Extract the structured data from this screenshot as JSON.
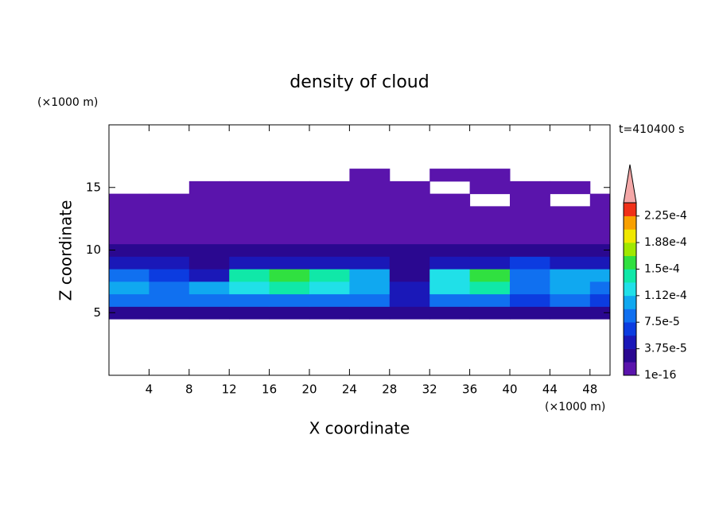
{
  "chart_data": {
    "type": "contour",
    "title": "density of cloud",
    "time_label": "t=410400 s",
    "x_label": "X coordinate",
    "y_label": "Z coordinate",
    "x_unit": "(×1000 m)",
    "y_unit": "(×1000 m)",
    "x": [
      2,
      6,
      10,
      14,
      18,
      22,
      26,
      30,
      34,
      38,
      42,
      46,
      50
    ],
    "z": [
      5,
      6,
      7,
      8,
      9,
      10,
      11,
      12,
      13,
      14,
      15,
      16
    ],
    "values": [
      [
        3e-05,
        3e-05,
        3e-05,
        3.5e-05,
        3.5e-05,
        3.5e-05,
        3e-05,
        2e-05,
        3e-05,
        3e-05,
        2.5e-05,
        3e-05,
        3e-05
      ],
      [
        8e-05,
        8e-05,
        9e-05,
        9e-05,
        9e-05,
        9e-05,
        8e-05,
        4e-05,
        9e-05,
        9e-05,
        6e-05,
        8e-05,
        6e-05
      ],
      [
        0.00011,
        9e-05,
        0.00011,
        0.00013,
        0.000135,
        0.00013,
        0.00011,
        5e-05,
        0.00013,
        0.000135,
        9e-05,
        0.0001,
        9e-05
      ],
      [
        9e-05,
        7e-05,
        4e-05,
        0.00015,
        0.00016,
        0.00014,
        0.0001,
        3e-05,
        0.00012,
        0.00016,
        8e-05,
        0.00011,
        0.00011
      ],
      [
        4e-05,
        4e-05,
        3.5e-05,
        4e-05,
        4e-05,
        4e-05,
        4e-05,
        3e-05,
        4e-05,
        5e-05,
        6e-05,
        4e-05,
        4e-05
      ],
      [
        2e-05,
        2e-05,
        2e-05,
        2e-05,
        2e-05,
        2e-05,
        2e-05,
        2e-05,
        2e-05,
        2e-05,
        2e-05,
        2e-05,
        2e-05
      ],
      [
        1e-05,
        1e-05,
        1e-05,
        1e-05,
        1e-05,
        1e-05,
        1e-05,
        1e-05,
        1e-05,
        1e-05,
        1e-05,
        1e-05,
        1e-05
      ],
      [
        5e-06,
        5e-06,
        5e-06,
        5e-06,
        5e-06,
        5e-06,
        5e-06,
        5e-06,
        5e-06,
        5e-06,
        5e-06,
        5e-06,
        5e-06
      ],
      [
        1e-06,
        1e-06,
        1e-06,
        1e-06,
        1e-06,
        1e-06,
        1e-06,
        1e-06,
        1e-06,
        1e-06,
        1e-06,
        1e-06,
        1e-06
      ],
      [
        1e-06,
        1e-06,
        1e-06,
        1e-06,
        1e-06,
        1e-06,
        1e-06,
        1e-06,
        1e-06,
        null,
        1e-06,
        null,
        1e-06
      ],
      [
        null,
        null,
        1e-06,
        1e-06,
        1e-06,
        1e-06,
        1e-06,
        1e-06,
        null,
        1e-06,
        1e-06,
        1e-06,
        null
      ],
      [
        null,
        null,
        null,
        null,
        null,
        null,
        1e-06,
        null,
        1e-06,
        1e-06,
        null,
        null,
        null
      ]
    ],
    "xlim": [
      0,
      50
    ],
    "ylim": [
      0,
      20
    ],
    "xticks": [
      4,
      8,
      12,
      16,
      20,
      24,
      28,
      32,
      36,
      40,
      44,
      48
    ],
    "yticks": [
      5,
      10,
      15
    ],
    "clim": [
      1e-16,
      0.00024375
    ],
    "colors": [
      "#5a14ac",
      "#2a0890",
      "#1a18b8",
      "#0c3ce0",
      "#1070f0",
      "#10a8f0",
      "#20e0e8",
      "#10e8a8",
      "#30e040",
      "#a0e800",
      "#f0e800",
      "#f8a000",
      "#f03018"
    ],
    "extend_color": "#f4a8a8",
    "cticks": [
      {
        "value": 1e-16,
        "label": "1e-16"
      },
      {
        "value": 3.75e-05,
        "label": "3.75e-5"
      },
      {
        "value": 7.5e-05,
        "label": "7.5e-5"
      },
      {
        "value": 0.0001125,
        "label": "1.12e-4"
      },
      {
        "value": 0.00015,
        "label": "1.5e-4"
      },
      {
        "value": 0.0001875,
        "label": "1.88e-4"
      },
      {
        "value": 0.000225,
        "label": "2.25e-4"
      }
    ]
  }
}
